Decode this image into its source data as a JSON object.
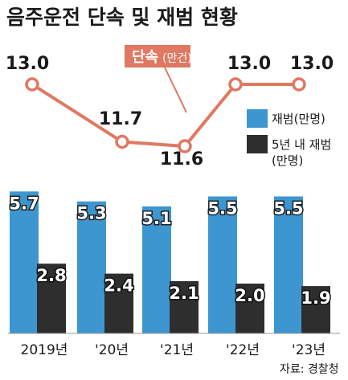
{
  "chart_data": {
    "type": "bar+line",
    "title": "음주운전 단속 및 재범 현황",
    "categories": [
      "2019년",
      "'20년",
      "'21년",
      "'22년",
      "'23년"
    ],
    "line_series": {
      "name": "단속",
      "unit": "(만건)",
      "values": [
        13.0,
        11.7,
        11.6,
        13.0,
        13.0
      ],
      "labels": [
        "13.0",
        "11.7",
        "11.6",
        "13.0",
        "13.0"
      ],
      "color": "#e07862"
    },
    "series": [
      {
        "name": "재범(만명)",
        "values": [
          5.7,
          5.3,
          5.1,
          5.5,
          5.5
        ],
        "labels": [
          "5.7",
          "5.3",
          "5.1",
          "5.5",
          "5.5"
        ],
        "color": "#3e96d0"
      },
      {
        "name": "5년 내 재범",
        "unit": "(만명)",
        "values": [
          2.8,
          2.4,
          2.1,
          2.0,
          1.9
        ],
        "labels": [
          "2.8",
          "2.4",
          "2.1",
          "2.0",
          "1.9"
        ],
        "color": "#2e2e2e"
      }
    ],
    "source": "자료: 경찰청"
  }
}
